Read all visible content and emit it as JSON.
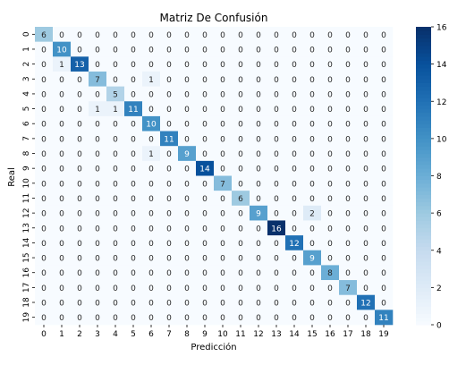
{
  "chart_data": {
    "type": "heatmap",
    "title": "Matriz De Confusión",
    "xlabel": "Predicción",
    "ylabel": "Real",
    "x_categories": [
      "0",
      "1",
      "2",
      "3",
      "4",
      "5",
      "6",
      "7",
      "8",
      "9",
      "10",
      "11",
      "12",
      "13",
      "14",
      "15",
      "16",
      "17",
      "18",
      "19"
    ],
    "y_categories": [
      "0",
      "1",
      "2",
      "3",
      "4",
      "5",
      "6",
      "7",
      "8",
      "9",
      "10",
      "11",
      "12",
      "13",
      "14",
      "15",
      "16",
      "17",
      "18",
      "19"
    ],
    "values": [
      [
        6,
        0,
        0,
        0,
        0,
        0,
        0,
        0,
        0,
        0,
        0,
        0,
        0,
        0,
        0,
        0,
        0,
        0,
        0,
        0
      ],
      [
        0,
        10,
        0,
        0,
        0,
        0,
        0,
        0,
        0,
        0,
        0,
        0,
        0,
        0,
        0,
        0,
        0,
        0,
        0,
        0
      ],
      [
        0,
        1,
        13,
        0,
        0,
        0,
        0,
        0,
        0,
        0,
        0,
        0,
        0,
        0,
        0,
        0,
        0,
        0,
        0,
        0
      ],
      [
        0,
        0,
        0,
        7,
        0,
        0,
        1,
        0,
        0,
        0,
        0,
        0,
        0,
        0,
        0,
        0,
        0,
        0,
        0,
        0
      ],
      [
        0,
        0,
        0,
        0,
        5,
        0,
        0,
        0,
        0,
        0,
        0,
        0,
        0,
        0,
        0,
        0,
        0,
        0,
        0,
        0
      ],
      [
        0,
        0,
        0,
        1,
        1,
        11,
        0,
        0,
        0,
        0,
        0,
        0,
        0,
        0,
        0,
        0,
        0,
        0,
        0,
        0
      ],
      [
        0,
        0,
        0,
        0,
        0,
        0,
        10,
        0,
        0,
        0,
        0,
        0,
        0,
        0,
        0,
        0,
        0,
        0,
        0,
        0
      ],
      [
        0,
        0,
        0,
        0,
        0,
        0,
        0,
        11,
        0,
        0,
        0,
        0,
        0,
        0,
        0,
        0,
        0,
        0,
        0,
        0
      ],
      [
        0,
        0,
        0,
        0,
        0,
        0,
        1,
        0,
        9,
        0,
        0,
        0,
        0,
        0,
        0,
        0,
        0,
        0,
        0,
        0
      ],
      [
        0,
        0,
        0,
        0,
        0,
        0,
        0,
        0,
        0,
        14,
        0,
        0,
        0,
        0,
        0,
        0,
        0,
        0,
        0,
        0
      ],
      [
        0,
        0,
        0,
        0,
        0,
        0,
        0,
        0,
        0,
        0,
        7,
        0,
        0,
        0,
        0,
        0,
        0,
        0,
        0,
        0
      ],
      [
        0,
        0,
        0,
        0,
        0,
        0,
        0,
        0,
        0,
        0,
        0,
        6,
        0,
        0,
        0,
        0,
        0,
        0,
        0,
        0
      ],
      [
        0,
        0,
        0,
        0,
        0,
        0,
        0,
        0,
        0,
        0,
        0,
        0,
        9,
        0,
        0,
        2,
        0,
        0,
        0,
        0
      ],
      [
        0,
        0,
        0,
        0,
        0,
        0,
        0,
        0,
        0,
        0,
        0,
        0,
        0,
        16,
        0,
        0,
        0,
        0,
        0,
        0
      ],
      [
        0,
        0,
        0,
        0,
        0,
        0,
        0,
        0,
        0,
        0,
        0,
        0,
        0,
        0,
        12,
        0,
        0,
        0,
        0,
        0
      ],
      [
        0,
        0,
        0,
        0,
        0,
        0,
        0,
        0,
        0,
        0,
        0,
        0,
        0,
        0,
        0,
        9,
        0,
        0,
        0,
        0
      ],
      [
        0,
        0,
        0,
        0,
        0,
        0,
        0,
        0,
        0,
        0,
        0,
        0,
        0,
        0,
        0,
        0,
        8,
        0,
        0,
        0
      ],
      [
        0,
        0,
        0,
        0,
        0,
        0,
        0,
        0,
        0,
        0,
        0,
        0,
        0,
        0,
        0,
        0,
        0,
        7,
        0,
        0
      ],
      [
        0,
        0,
        0,
        0,
        0,
        0,
        0,
        0,
        0,
        0,
        0,
        0,
        0,
        0,
        0,
        0,
        0,
        0,
        12,
        0
      ],
      [
        0,
        0,
        0,
        0,
        0,
        0,
        0,
        0,
        0,
        0,
        0,
        0,
        0,
        0,
        0,
        0,
        0,
        0,
        0,
        11
      ]
    ],
    "colorbar": {
      "min": 0,
      "max": 16,
      "ticks": [
        "0",
        "2",
        "4",
        "6",
        "8",
        "10",
        "12",
        "14",
        "16"
      ],
      "colormap": "Blues"
    },
    "colors": {
      "low": "#f7fbff",
      "high": "#08306b",
      "text_dark": "#262626",
      "text_light": "#ffffff"
    }
  }
}
